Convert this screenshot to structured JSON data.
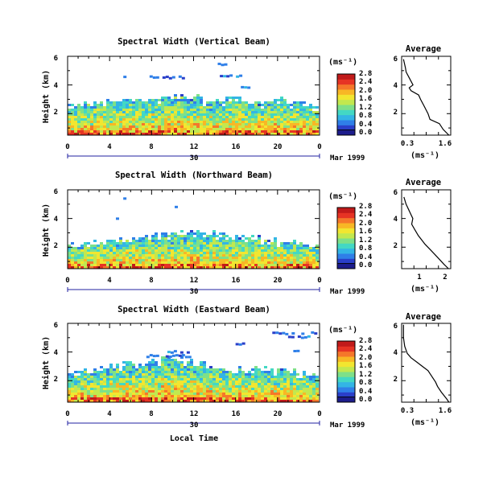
{
  "panels": [
    {
      "title": "Spectral Width (Vertical Beam)",
      "xticks": [
        "0",
        "4",
        "8",
        "12",
        "16",
        "20",
        "0"
      ],
      "yticks": [
        "2",
        "4",
        "6"
      ],
      "ylabel": "Height (km)",
      "day_label": "30",
      "month_label": "Mar 1999"
    },
    {
      "title": "Spectral Width (Northward Beam)",
      "xticks": [
        "0",
        "4",
        "8",
        "12",
        "16",
        "20",
        "0"
      ],
      "yticks": [
        "2",
        "4",
        "6"
      ],
      "ylabel": "Height (km)",
      "day_label": "30",
      "month_label": "Mar 1999"
    },
    {
      "title": "Spectral Width (Eastward Beam)",
      "xticks": [
        "0",
        "4",
        "8",
        "12",
        "16",
        "20",
        "0"
      ],
      "yticks": [
        "2",
        "4",
        "6"
      ],
      "ylabel": "Height (km)",
      "day_label": "30",
      "month_label": "Mar 1999"
    }
  ],
  "xlabel": "Local Time",
  "colorbar": {
    "unit_label": "(ms⁻¹)",
    "ticks": [
      "0.0",
      "0.4",
      "0.8",
      "1.2",
      "1.6",
      "2.0",
      "2.4",
      "2.8"
    ],
    "colors": [
      "#1c1c8c",
      "#2a3fc9",
      "#2f7fe8",
      "#33b5e5",
      "#43d8c4",
      "#7ee089",
      "#c2e84f",
      "#f2e630",
      "#f8b725",
      "#f5772a",
      "#e63324",
      "#c11a1a"
    ]
  },
  "average_title": "Average",
  "average_xlabel": "(ms⁻¹)",
  "chart_data": [
    {
      "type": "heatmap",
      "title": "Spectral Width (Vertical Beam)",
      "xlabel": "Local Time",
      "ylabel": "Height (km)",
      "xlim": [
        0,
        24
      ],
      "ylim": [
        0.5,
        6
      ],
      "clim": [
        0,
        2.8
      ],
      "echo_top_km": [
        2.7,
        2.9,
        3.0,
        2.9,
        3.1,
        3.2,
        3.0,
        3.3,
        3.1,
        3.4,
        3.3,
        3.2,
        3.4,
        3.0,
        3.1,
        3.2,
        3.3,
        3.0,
        2.9,
        3.0,
        3.1,
        2.9,
        2.8,
        2.7,
        2.6
      ],
      "layers": [
        {
          "x0": 5.0,
          "x1": 5.6,
          "y": 4.6
        },
        {
          "x0": 7.5,
          "x1": 11.0,
          "y": 4.6
        },
        {
          "x0": 14.5,
          "x1": 16.5,
          "y": 4.7
        },
        {
          "x0": 14.3,
          "x1": 15.0,
          "y": 5.5
        },
        {
          "x0": 16.5,
          "x1": 17.6,
          "y": 3.9
        }
      ]
    },
    {
      "type": "heatmap",
      "title": "Spectral Width (Northward Beam)",
      "xlabel": "Local Time",
      "ylabel": "Height (km)",
      "xlim": [
        0,
        24
      ],
      "ylim": [
        0.5,
        6
      ],
      "clim": [
        0,
        2.8
      ],
      "echo_top_km": [
        2.3,
        2.4,
        2.6,
        2.5,
        2.6,
        2.8,
        2.9,
        2.9,
        3.0,
        3.1,
        3.2,
        3.1,
        3.2,
        3.1,
        3.0,
        3.0,
        2.9,
        2.8,
        2.8,
        2.6,
        2.5,
        2.5,
        2.4,
        2.3,
        2.2
      ],
      "layers": [
        {
          "x0": 5.3,
          "x1": 5.5,
          "y": 5.5
        },
        {
          "x0": 10.2,
          "x1": 10.4,
          "y": 4.9
        },
        {
          "x0": 4.6,
          "x1": 4.8,
          "y": 4.1
        }
      ]
    },
    {
      "type": "heatmap",
      "title": "Spectral Width (Eastward Beam)",
      "xlabel": "Local Time",
      "ylabel": "Height (km)",
      "xlim": [
        0,
        24
      ],
      "ylim": [
        0.5,
        6
      ],
      "clim": [
        0,
        2.8
      ],
      "echo_top_km": [
        2.6,
        2.9,
        2.9,
        3.1,
        3.2,
        3.3,
        3.3,
        3.4,
        3.6,
        3.8,
        3.6,
        3.5,
        3.4,
        3.2,
        3.1,
        3.0,
        3.0,
        3.0,
        2.9,
        2.9,
        2.9,
        2.7,
        2.6,
        2.5,
        2.4
      ],
      "layers": [
        {
          "x0": 7.5,
          "x1": 11.5,
          "y": 3.8
        },
        {
          "x0": 9.5,
          "x1": 11.5,
          "y": 4.1
        },
        {
          "x0": 19.5,
          "x1": 23.5,
          "y": 5.4
        },
        {
          "x0": 21.0,
          "x1": 23.0,
          "y": 5.1
        },
        {
          "x0": 16.0,
          "x1": 17.0,
          "y": 4.6
        },
        {
          "x0": 21.5,
          "x1": 22.0,
          "y": 4.2
        }
      ]
    },
    {
      "type": "line",
      "title": "Average",
      "xlabel": "(ms⁻¹)",
      "ylabel": "Height (km)",
      "xlim": [
        0.3,
        1.6
      ],
      "ylim": [
        0.5,
        6
      ],
      "x": [
        0.35,
        0.4,
        0.42,
        0.5,
        0.6,
        0.5,
        0.55,
        0.75,
        0.8,
        0.9,
        1.0,
        1.05,
        1.3,
        1.4,
        1.55
      ],
      "y": [
        5.8,
        5.2,
        4.9,
        4.5,
        4.0,
        3.8,
        3.6,
        3.3,
        3.0,
        2.5,
        2.0,
        1.6,
        1.3,
        0.9,
        0.5
      ],
      "xticklabels": [
        "0.3",
        "1.6"
      ],
      "yticks": [
        "2",
        "4",
        "6"
      ]
    },
    {
      "type": "line",
      "title": "Average",
      "xlabel": "(ms⁻¹)",
      "ylabel": "Height (km)",
      "xlim": [
        0,
        2.2
      ],
      "ylim": [
        0.5,
        6
      ],
      "x": [
        0.1,
        0.2,
        0.35,
        0.5,
        0.45,
        0.6,
        0.75,
        0.9,
        1.05,
        1.3,
        1.6,
        1.9,
        2.1
      ],
      "y": [
        5.5,
        5.0,
        4.5,
        4.0,
        3.6,
        3.2,
        2.8,
        2.5,
        2.2,
        1.8,
        1.3,
        0.8,
        0.5
      ],
      "xticklabels": [
        "1",
        "2"
      ],
      "yticks": [
        "2",
        "4",
        "6"
      ]
    },
    {
      "type": "line",
      "title": "Average",
      "xlabel": "(ms⁻¹)",
      "ylabel": "Height (km)",
      "xlim": [
        0.3,
        1.6
      ],
      "ylim": [
        0.5,
        6
      ],
      "x": [
        0.35,
        0.35,
        0.38,
        0.45,
        0.55,
        0.7,
        0.85,
        1.0,
        1.1,
        1.2,
        1.25,
        1.35,
        1.5,
        1.55
      ],
      "y": [
        5.9,
        5.0,
        4.4,
        3.9,
        3.6,
        3.3,
        3.0,
        2.7,
        2.3,
        1.9,
        1.6,
        1.2,
        0.7,
        0.5
      ],
      "xticklabels": [
        "0.3",
        "1.6"
      ],
      "yticks": [
        "2",
        "4",
        "6"
      ]
    }
  ]
}
